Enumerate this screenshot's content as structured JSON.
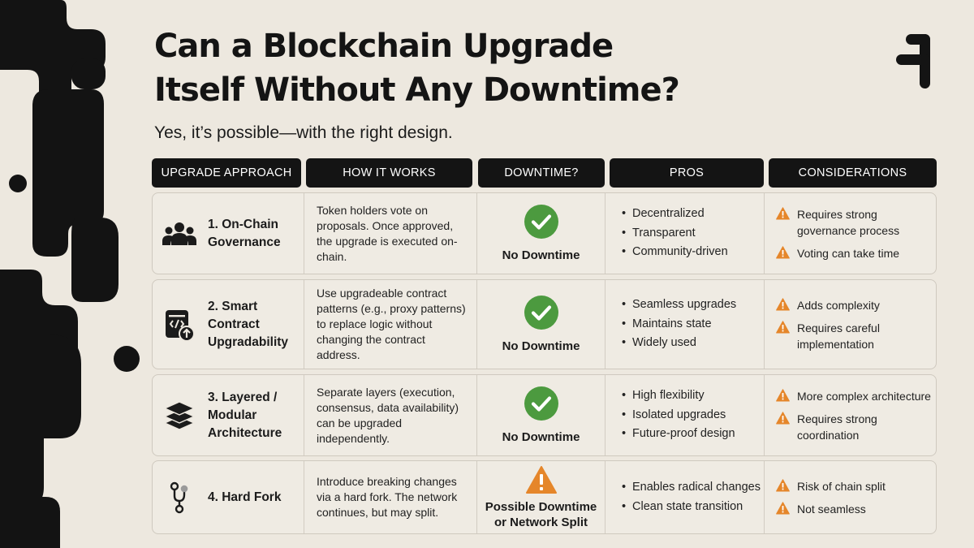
{
  "title_line1": "Can a Blockchain Upgrade",
  "title_line2": "Itself Without Any Downtime?",
  "subtitle": "Yes, it’s possible—with the right design.",
  "headers": [
    "UPGRADE APPROACH",
    "HOW IT WORKS",
    "DOWNTIME?",
    "PROS",
    "CONSIDERATIONS"
  ],
  "colors": {
    "accent_green": "#4c9a3f",
    "warning_orange": "#e5862a",
    "dark": "#141414",
    "background": "#ede8df"
  },
  "rows": [
    {
      "icon": "people-icon",
      "approach": [
        "1. On-Chain",
        "Governance"
      ],
      "how": "Token holders vote on proposals. Once approved, the upgrade is executed on-chain.",
      "downtime_icon": "check-icon",
      "downtime": "No Downtime",
      "pros": [
        "Decentralized",
        "Transparent",
        "Community-driven"
      ],
      "cons": [
        "Requires strong governance process",
        "Voting can take time"
      ]
    },
    {
      "icon": "smart-contract-icon",
      "approach": [
        "2. Smart Contract",
        "Upgradability"
      ],
      "how": "Use upgradeable contract patterns (e.g., proxy patterns) to replace logic without changing the contract address.",
      "downtime_icon": "check-icon",
      "downtime": "No Downtime",
      "pros": [
        "Seamless upgrades",
        "Maintains state",
        "Widely used"
      ],
      "cons": [
        "Adds complexity",
        "Requires careful implementation"
      ]
    },
    {
      "icon": "layers-icon",
      "approach": [
        "3. Layered /",
        "Modular",
        "Architecture"
      ],
      "how": "Separate layers (execution, consensus, data availability) can be upgraded independently.",
      "downtime_icon": "check-icon",
      "downtime": "No Downtime",
      "pros": [
        "High flexibility",
        "Isolated upgrades",
        "Future-proof design"
      ],
      "cons": [
        "More complex architecture",
        "Requires strong coordination"
      ]
    },
    {
      "icon": "fork-icon",
      "approach": [
        "4. Hard Fork"
      ],
      "how": "Introduce breaking changes via a hard fork. The network continues, but may split.",
      "downtime_icon": "warning-icon",
      "downtime": [
        "Possible Downtime",
        "or Network Split"
      ],
      "pros": [
        "Enables radical changes",
        "Clean state transition"
      ],
      "cons": [
        "Risk of chain split",
        "Not seamless"
      ]
    }
  ]
}
